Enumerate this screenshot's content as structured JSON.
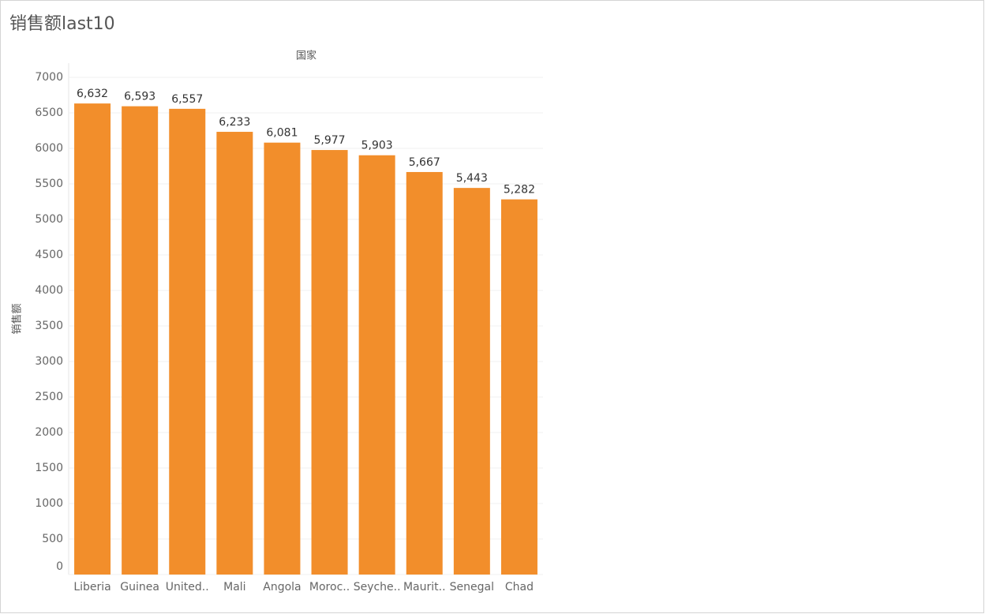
{
  "chart_data": {
    "type": "bar",
    "title": "销售额last10",
    "x_label": "国家",
    "y_label": "销售额",
    "categories": [
      "Liberia",
      "Guinea",
      "United..",
      "Mali",
      "Angola",
      "Moroc..",
      "Seyche..",
      "Maurit..",
      "Senegal",
      "Chad"
    ],
    "values": [
      6632,
      6593,
      6557,
      6233,
      6081,
      5977,
      5903,
      5667,
      5443,
      5282
    ],
    "value_labels": [
      "6,632",
      "6,593",
      "6,557",
      "6,233",
      "6,081",
      "5,977",
      "5,903",
      "5,667",
      "5,443",
      "5,282"
    ],
    "color": "#f28e2b",
    "ylim": [
      0,
      7000
    ],
    "yticks": [
      0,
      500,
      1000,
      1500,
      2000,
      2500,
      3000,
      3500,
      4000,
      4500,
      5000,
      5500,
      6000,
      6500,
      7000
    ],
    "grid": true
  }
}
